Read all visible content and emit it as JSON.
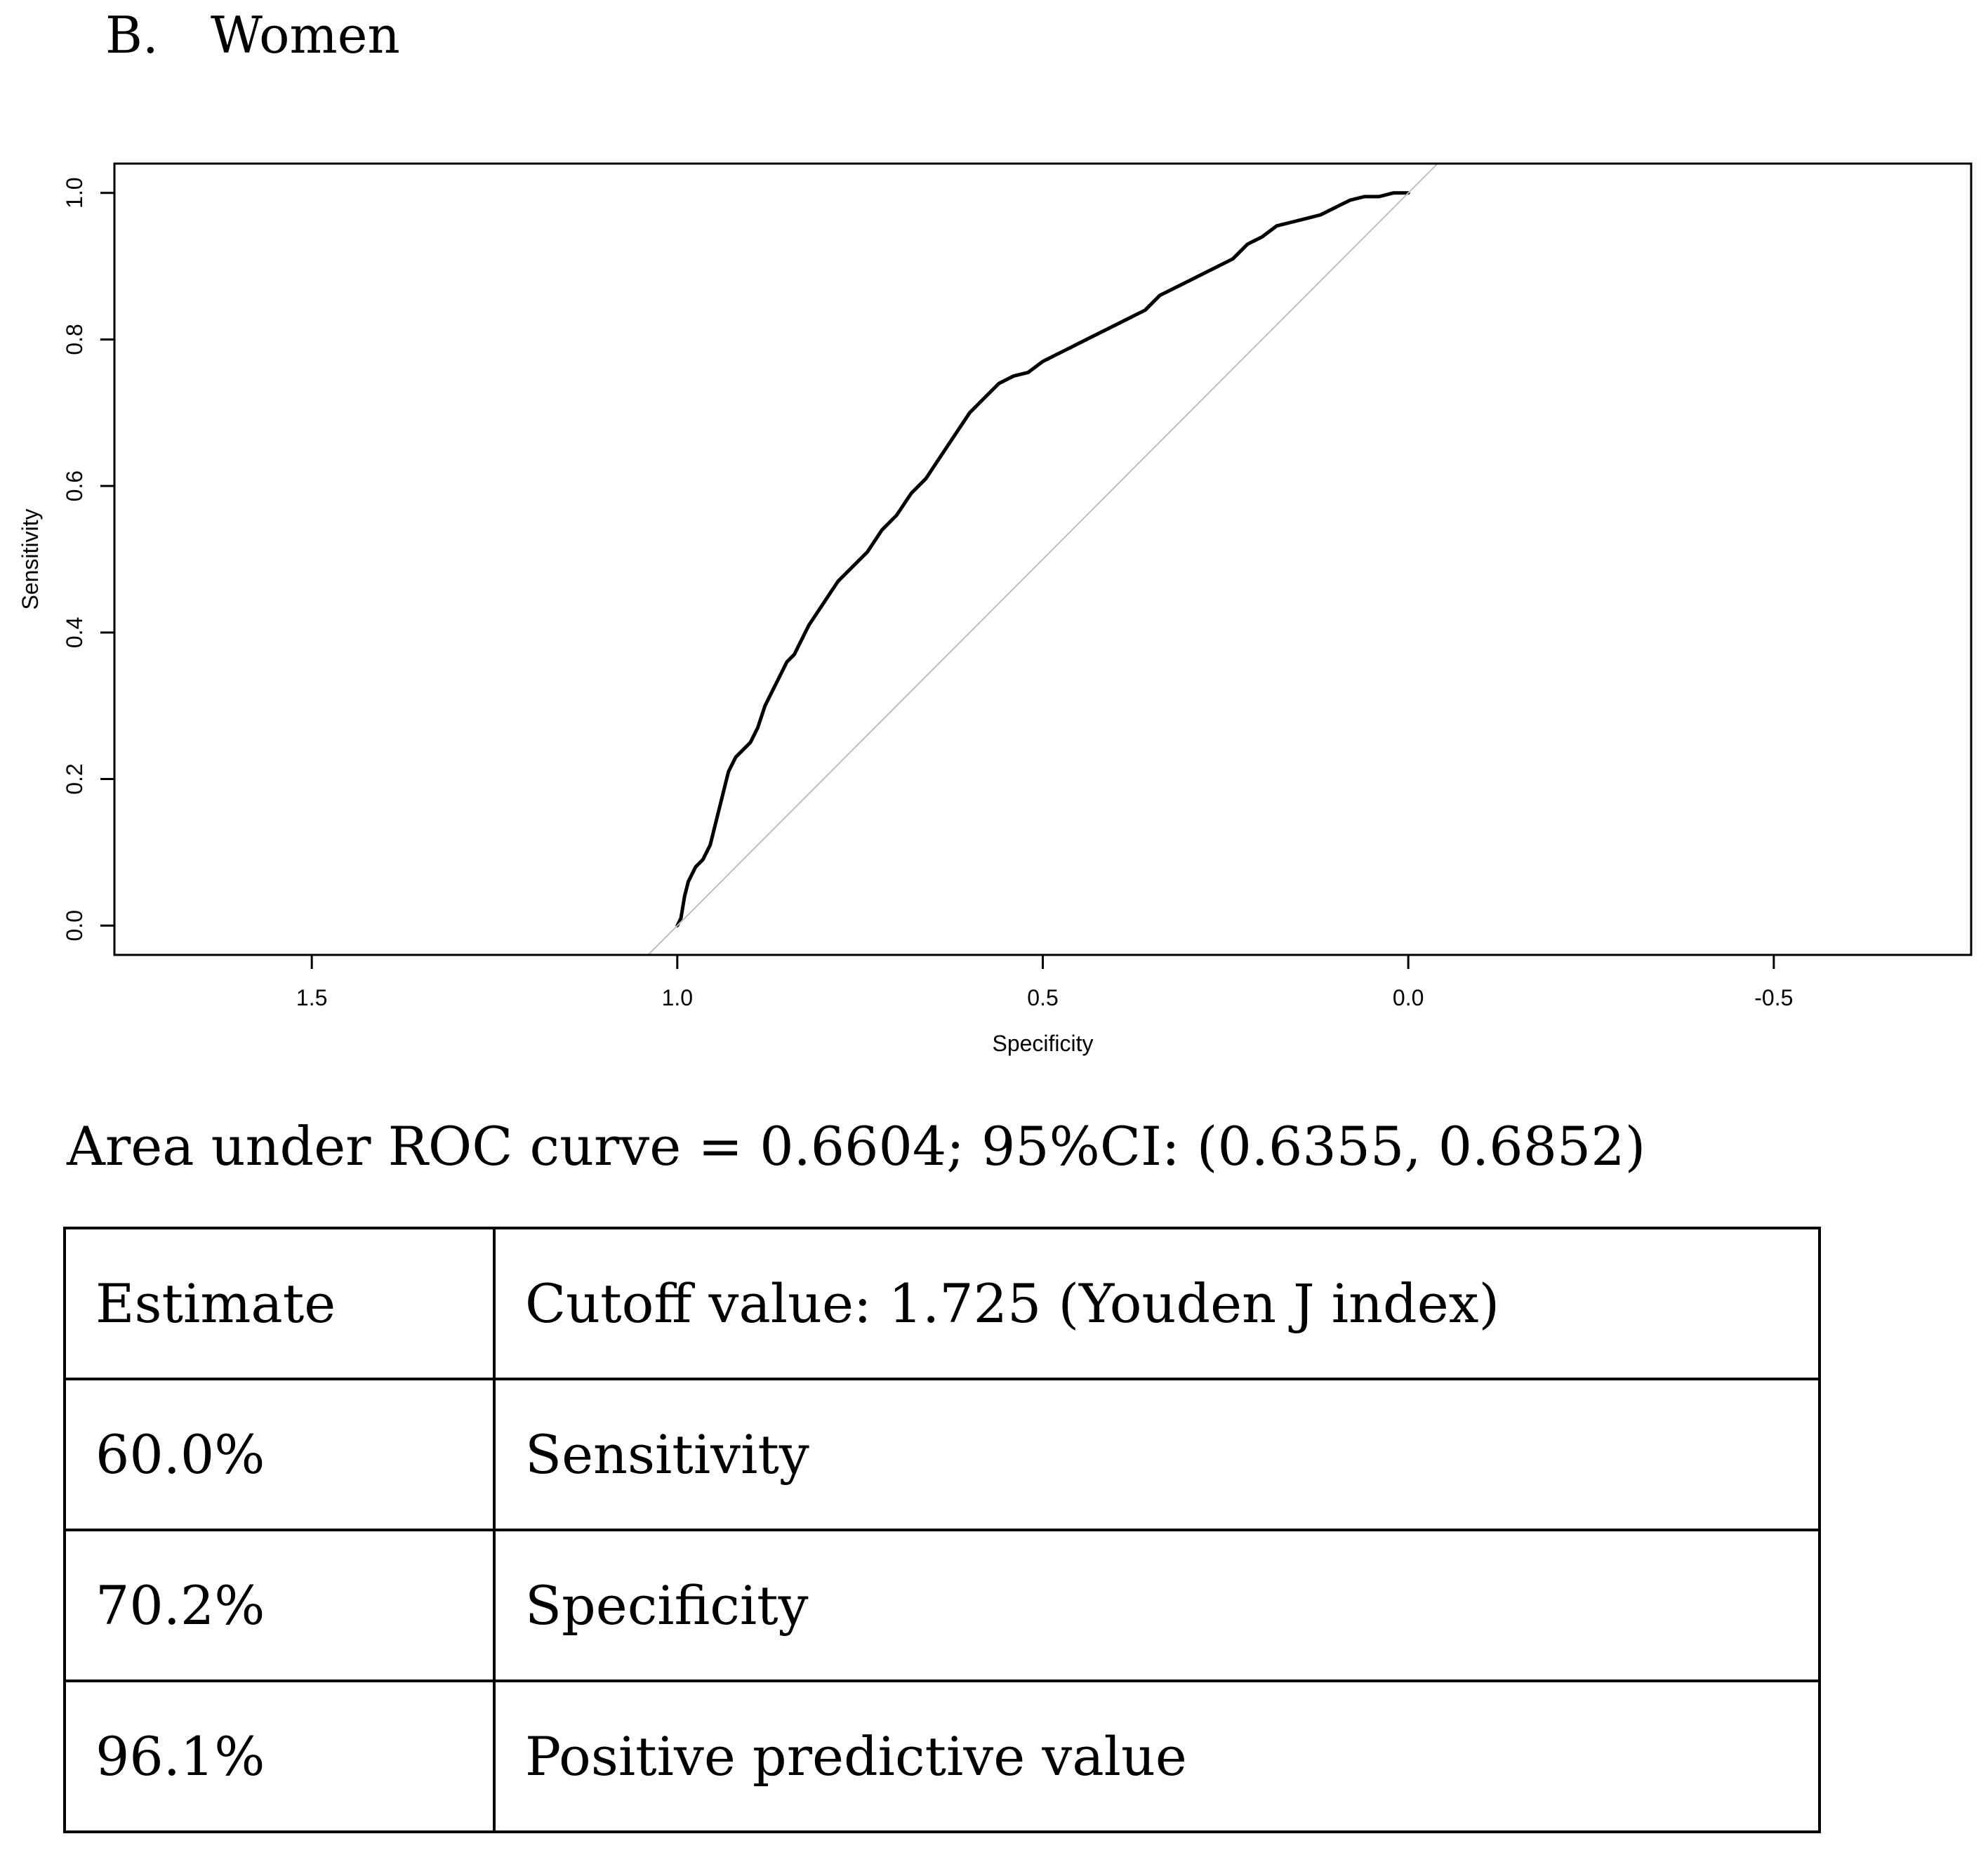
{
  "panel": {
    "letter": "B.",
    "title": "Women"
  },
  "chart_data": {
    "type": "line",
    "title": "",
    "xlabel": "Specificity",
    "ylabel": "Sensitivity",
    "x_reversed": true,
    "xlim": [
      1.77,
      -0.77
    ],
    "ylim": [
      -0.04,
      1.04
    ],
    "x_ticks": [
      1.5,
      1.0,
      0.5,
      0.0,
      -0.5
    ],
    "x_tick_labels": [
      "1.5",
      "1.0",
      "0.5",
      "0.0",
      "-0.5"
    ],
    "y_ticks": [
      0.0,
      0.2,
      0.4,
      0.6,
      0.8,
      1.0
    ],
    "y_tick_labels": [
      "0.0",
      "0.2",
      "0.4",
      "0.6",
      "0.8",
      "1.0"
    ],
    "series": [
      {
        "name": "ROC curve",
        "color": "#000000",
        "specificity": [
          1.0,
          0.995,
          0.99,
          0.985,
          0.975,
          0.965,
          0.96,
          0.955,
          0.95,
          0.945,
          0.94,
          0.93,
          0.92,
          0.91,
          0.9,
          0.89,
          0.88,
          0.87,
          0.86,
          0.85,
          0.84,
          0.82,
          0.8,
          0.78,
          0.76,
          0.74,
          0.72,
          0.7,
          0.68,
          0.66,
          0.64,
          0.62,
          0.6,
          0.58,
          0.56,
          0.54,
          0.52,
          0.5,
          0.48,
          0.46,
          0.44,
          0.42,
          0.4,
          0.38,
          0.36,
          0.34,
          0.32,
          0.3,
          0.28,
          0.26,
          0.24,
          0.22,
          0.2,
          0.18,
          0.16,
          0.14,
          0.12,
          0.1,
          0.08,
          0.06,
          0.04,
          0.02,
          0.0
        ],
        "sensitivity": [
          0.0,
          0.01,
          0.04,
          0.06,
          0.08,
          0.09,
          0.1,
          0.11,
          0.13,
          0.15,
          0.17,
          0.21,
          0.23,
          0.24,
          0.25,
          0.27,
          0.3,
          0.32,
          0.34,
          0.36,
          0.37,
          0.41,
          0.44,
          0.47,
          0.49,
          0.51,
          0.54,
          0.56,
          0.59,
          0.61,
          0.64,
          0.67,
          0.7,
          0.72,
          0.74,
          0.75,
          0.755,
          0.77,
          0.78,
          0.79,
          0.8,
          0.81,
          0.82,
          0.83,
          0.84,
          0.86,
          0.87,
          0.88,
          0.89,
          0.9,
          0.91,
          0.93,
          0.94,
          0.955,
          0.96,
          0.965,
          0.97,
          0.98,
          0.99,
          0.995,
          0.995,
          1.0,
          1.0
        ]
      },
      {
        "name": "Chance diagonal",
        "color": "#bfbfbf",
        "specificity": [
          1.05,
          -0.05
        ],
        "sensitivity": [
          -0.05,
          1.05
        ]
      }
    ]
  },
  "auc_text": "Area under ROC curve = 0.6604; 95%CI: (0.6355, 0.6852)",
  "auc": {
    "value": 0.6604,
    "ci_low": 0.6355,
    "ci_high": 0.6852
  },
  "table": {
    "rows": [
      {
        "c1": "Estimate",
        "c2": "Cutoff value: 1.725 (Youden J index)"
      },
      {
        "c1": "60.0%",
        "c2": "Sensitivity"
      },
      {
        "c1": "70.2%",
        "c2": "Specificity"
      },
      {
        "c1": "96.1%",
        "c2": "Positive predictive value"
      }
    ]
  }
}
